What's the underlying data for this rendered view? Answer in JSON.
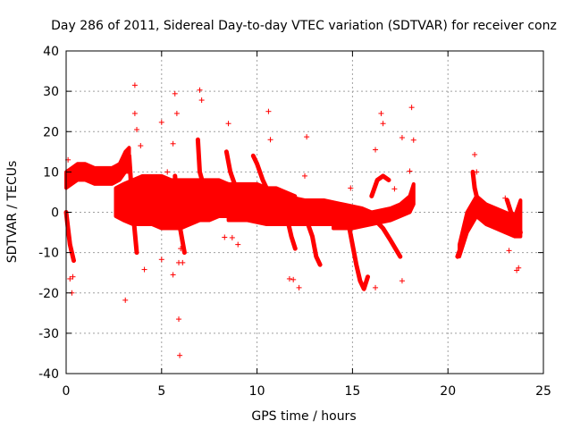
{
  "chart_data": {
    "type": "scatter",
    "title": "Day 286 of 2011, Sidereal Day-to-day VTEC variation (SDTVAR) for receiver conz",
    "xlabel": "GPS time / hours",
    "ylabel": "SDTVAR / TECUs",
    "xlim": [
      0,
      25
    ],
    "ylim": [
      -40,
      40
    ],
    "xticks": [
      0,
      5,
      10,
      15,
      20,
      25
    ],
    "yticks": [
      -40,
      -30,
      -20,
      -10,
      0,
      10,
      20,
      30,
      40
    ],
    "xtick_labels": [
      "0",
      "5",
      "10",
      "15",
      "20",
      "25"
    ],
    "ytick_labels": [
      "-40",
      "-30",
      "-20",
      "-10",
      "0",
      "10",
      "20",
      "30",
      "40"
    ],
    "grid": true,
    "marker": "+",
    "color": "#ff0000",
    "bands": [
      {
        "name": "track-a",
        "x": [
          0.0,
          0.3,
          0.6,
          1.0,
          1.5,
          2.0,
          2.4,
          2.8,
          3.1,
          3.3
        ],
        "low": [
          6,
          7,
          8,
          8,
          7,
          7,
          7,
          8,
          10,
          10
        ],
        "high": [
          10,
          11,
          12,
          12,
          11,
          11,
          11,
          12,
          15,
          16
        ]
      },
      {
        "name": "track-b",
        "x": [
          2.6,
          3.0,
          3.5,
          4.0,
          4.5,
          5.0,
          5.5,
          6.0,
          6.5,
          7.0,
          7.5,
          8.0,
          8.5,
          9.0,
          9.5,
          10.0,
          10.5,
          11.0,
          11.5,
          12.0
        ],
        "low": [
          -1,
          -2,
          -3,
          -3,
          -3,
          -4,
          -4,
          -4,
          -3,
          -2,
          -2,
          -1,
          -1,
          0,
          0,
          0,
          -1,
          -1,
          -2,
          -2
        ],
        "high": [
          6,
          7,
          8,
          9,
          9,
          9,
          8,
          8,
          8,
          8,
          8,
          8,
          7,
          7,
          7,
          7,
          6,
          6,
          5,
          4
        ]
      },
      {
        "name": "track-c",
        "x": [
          8.5,
          9.5,
          10.5,
          11.5,
          12.5,
          13.5,
          14.5,
          15.5,
          16.0
        ],
        "low": [
          -2,
          -2,
          -3,
          -3,
          -3,
          -3,
          -3,
          -3,
          -2
        ],
        "high": [
          6,
          5,
          5,
          4,
          3,
          3,
          2,
          1,
          0
        ]
      },
      {
        "name": "track-d",
        "x": [
          14.0,
          15.0,
          16.0,
          17.0,
          17.5,
          18.0,
          18.2
        ],
        "low": [
          -4,
          -4,
          -3,
          -2,
          -1,
          0,
          2
        ],
        "high": [
          0,
          0,
          0,
          1,
          2,
          4,
          7
        ]
      },
      {
        "name": "track-e",
        "x": [
          20.6,
          21.0,
          21.5,
          22.0,
          22.5,
          23.0,
          23.5,
          23.8
        ],
        "low": [
          -11,
          -5,
          -1,
          -3,
          -4,
          -5,
          -6,
          -6
        ],
        "high": [
          -8,
          0,
          4,
          2,
          1,
          0,
          -1,
          3
        ]
      }
    ],
    "lines": [
      {
        "name": "arc-1",
        "x": [
          0.0,
          0.1,
          0.2,
          0.3,
          0.4
        ],
        "y": [
          0,
          -4,
          -8,
          -10,
          -12
        ]
      },
      {
        "name": "arc-2",
        "x": [
          3.3,
          3.5,
          3.7
        ],
        "y": [
          14,
          0,
          -10
        ]
      },
      {
        "name": "arc-3",
        "x": [
          5.7,
          5.9,
          6.2
        ],
        "y": [
          9,
          -2,
          -10
        ]
      },
      {
        "name": "arc-4",
        "x": [
          6.9,
          7.0,
          7.3,
          7.6
        ],
        "y": [
          18,
          10,
          5,
          3
        ]
      },
      {
        "name": "arc-5",
        "x": [
          8.4,
          8.6,
          8.9,
          9.2
        ],
        "y": [
          15,
          10,
          6,
          4
        ]
      },
      {
        "name": "arc-6",
        "x": [
          9.8,
          10.0,
          10.3,
          10.6
        ],
        "y": [
          14,
          12,
          8,
          5
        ]
      },
      {
        "name": "arc-7",
        "x": [
          11.6,
          11.8,
          12.0
        ],
        "y": [
          -2,
          -6,
          -9
        ]
      },
      {
        "name": "arc-8",
        "x": [
          12.6,
          12.9,
          13.1,
          13.3
        ],
        "y": [
          -2,
          -6,
          -11,
          -13
        ]
      },
      {
        "name": "arc-9",
        "x": [
          14.8,
          15.0,
          15.2,
          15.4,
          15.6,
          15.8
        ],
        "y": [
          -3,
          -8,
          -13,
          -17,
          -19,
          -16
        ]
      },
      {
        "name": "arc-10",
        "x": [
          16.0,
          16.3,
          16.6,
          16.9
        ],
        "y": [
          4,
          8,
          9,
          8
        ]
      },
      {
        "name": "arc-11",
        "x": [
          16.2,
          16.6,
          17.0,
          17.5
        ],
        "y": [
          -2,
          -4,
          -7,
          -11
        ]
      },
      {
        "name": "arc-12",
        "x": [
          20.5,
          20.8,
          21.1,
          21.4
        ],
        "y": [
          -11,
          -7,
          -2,
          2
        ]
      },
      {
        "name": "arc-13",
        "x": [
          21.3,
          21.4,
          21.6,
          21.9
        ],
        "y": [
          10,
          6,
          2,
          0
        ]
      },
      {
        "name": "arc-14",
        "x": [
          23.1,
          23.3,
          23.6,
          23.8
        ],
        "y": [
          3,
          0,
          -2,
          -5
        ]
      }
    ],
    "outliers": [
      [
        0.2,
        -16.5
      ],
      [
        0.3,
        -20
      ],
      [
        0.1,
        13
      ],
      [
        0.35,
        -16
      ],
      [
        3.1,
        -21.8
      ],
      [
        3.6,
        24.5
      ],
      [
        3.6,
        31.5
      ],
      [
        3.7,
        20.5
      ],
      [
        3.9,
        16.5
      ],
      [
        4.1,
        -14.2
      ],
      [
        5.0,
        22.3
      ],
      [
        5.0,
        -11.7
      ],
      [
        5.3,
        10
      ],
      [
        5.6,
        -15.5
      ],
      [
        5.7,
        29.4
      ],
      [
        5.8,
        24.5
      ],
      [
        5.6,
        17
      ],
      [
        5.9,
        -26.5
      ],
      [
        5.95,
        -35.5
      ],
      [
        5.9,
        -12.5
      ],
      [
        6.1,
        -12.5
      ],
      [
        6.0,
        -9
      ],
      [
        7.0,
        30.3
      ],
      [
        7.1,
        27.8
      ],
      [
        8.5,
        22
      ],
      [
        8.7,
        -6.3
      ],
      [
        8.3,
        -6.2
      ],
      [
        9.0,
        -8
      ],
      [
        10.6,
        25
      ],
      [
        10.7,
        18
      ],
      [
        11.7,
        -16.5
      ],
      [
        11.9,
        -16.7
      ],
      [
        12.2,
        -18.7
      ],
      [
        12.6,
        18.7
      ],
      [
        14.9,
        6
      ],
      [
        16.2,
        -18.7
      ],
      [
        16.5,
        24.5
      ],
      [
        16.6,
        22
      ],
      [
        16.2,
        15.5
      ],
      [
        17.2,
        5.8
      ],
      [
        17.6,
        18.5
      ],
      [
        17.6,
        -17
      ],
      [
        18.1,
        26
      ],
      [
        18.2,
        17.9
      ],
      [
        18.0,
        10.2
      ],
      [
        21.4,
        14.3
      ],
      [
        21.5,
        10
      ],
      [
        23.7,
        -13.8
      ],
      [
        23.6,
        -14.4
      ],
      [
        23.0,
        3.5
      ],
      [
        23.2,
        -9.5
      ],
      [
        12.5,
        9
      ]
    ]
  }
}
